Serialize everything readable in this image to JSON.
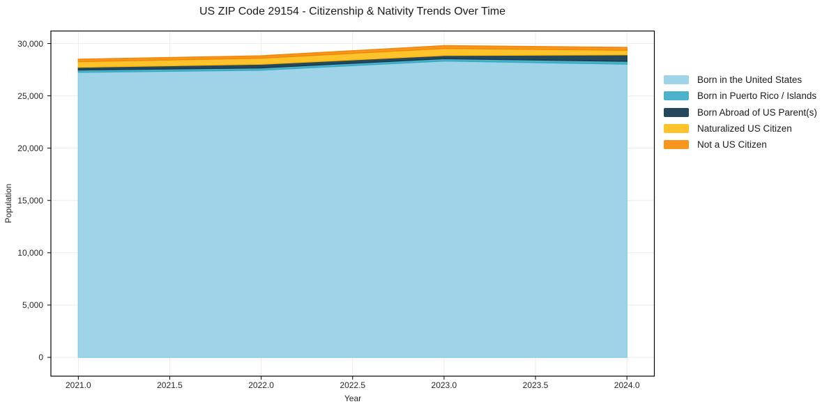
{
  "title": "US ZIP Code 29154 - Citizenship & Nativity Trends Over Time",
  "chart_data": {
    "type": "area",
    "stacked": true,
    "title": "US ZIP Code 29154 - Citizenship & Nativity Trends Over Time",
    "xlabel": "Year",
    "ylabel": "Population",
    "x": [
      2021,
      2022,
      2023,
      2024
    ],
    "series": [
      {
        "name": "Born in the United States",
        "color": "#9fd3e7",
        "edge": "#87ceeb",
        "values": [
          27250,
          27450,
          28330,
          28030
        ]
      },
      {
        "name": "Born in Puerto Rico / Islands",
        "color": "#4cb2c9",
        "edge": "#35a8c2",
        "values": [
          220,
          220,
          220,
          270
        ]
      },
      {
        "name": "Born Abroad of US Parent(s)",
        "color": "#24485c",
        "edge": "#1a3a4c",
        "values": [
          270,
          350,
          310,
          620
        ]
      },
      {
        "name": "Naturalized US Citizen",
        "color": "#fcc32d",
        "edge": "#fbb70c",
        "values": [
          530,
          580,
          670,
          440
        ]
      },
      {
        "name": "Not a US Citizen",
        "color": "#f8961f",
        "edge": "#f08705",
        "values": [
          230,
          230,
          270,
          270
        ]
      }
    ],
    "stack_totals": [
      28500,
      28830,
      29800,
      29630
    ],
    "xticks": [
      2021.0,
      2021.5,
      2022.0,
      2022.5,
      2023.0,
      2023.5,
      2024.0
    ],
    "xtick_labels": [
      "2021.0",
      "2021.5",
      "2022.0",
      "2022.5",
      "2023.0",
      "2023.5",
      "2024.0"
    ],
    "yticks": [
      0,
      5000,
      10000,
      15000,
      20000,
      25000,
      30000
    ],
    "ytick_labels": [
      "0",
      "5,000",
      "10,000",
      "15,000",
      "20,000",
      "25,000",
      "30,000"
    ],
    "xlim": [
      2020.85,
      2024.15
    ],
    "ylim": [
      -1800,
      31200
    ],
    "grid": true,
    "legend_position": "right"
  },
  "colors": {
    "background": "#ffffff",
    "grid": "#ebebeb",
    "frame": "#000000",
    "text": "#262626"
  }
}
